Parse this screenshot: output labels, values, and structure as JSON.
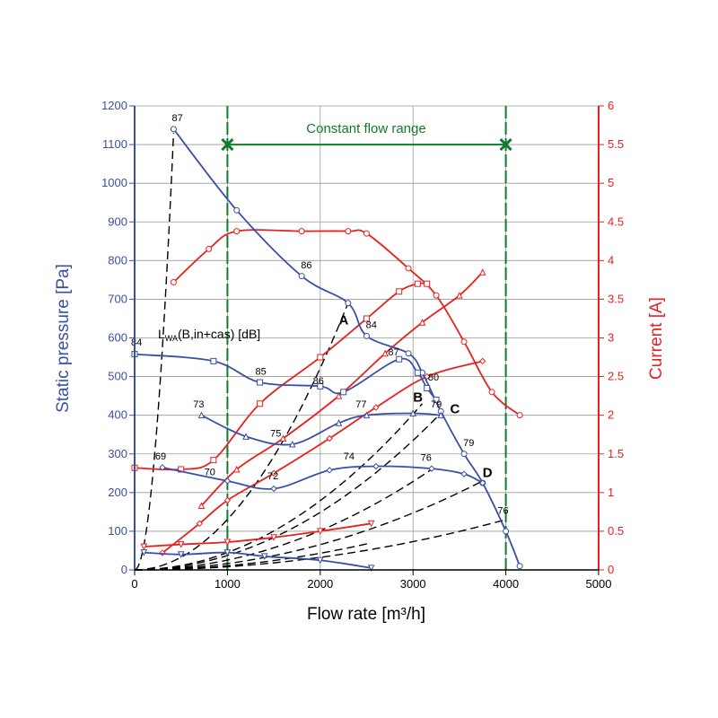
{
  "chart_data": {
    "type": "line",
    "title": "",
    "xlabel": "Flow rate [m³/h]",
    "ylabel": "Static pressure [Pa]",
    "y2label": "Current [A]",
    "xlim": [
      0,
      5000
    ],
    "ylim": [
      0,
      1200
    ],
    "y2lim": [
      0,
      6
    ],
    "x_ticks": [
      "0",
      "1000",
      "2000",
      "3000",
      "4000",
      "5000"
    ],
    "y_ticks": [
      "0",
      "100",
      "200",
      "300",
      "400",
      "500",
      "600",
      "700",
      "800",
      "900",
      "1000",
      "1100",
      "1200"
    ],
    "y2_ticks": [
      "0",
      "0.5",
      "1",
      "1.5",
      "2",
      "2.5",
      "3",
      "3.5",
      "4",
      "4.5",
      "5",
      "5.5",
      "6"
    ],
    "grid": true,
    "colors": {
      "pressure": "#3a4fa3",
      "current": "#e8201f",
      "range": "#127a2e",
      "system": "#000000"
    },
    "constant_flow_range": {
      "label": "Constant flow range",
      "x_start": 1000,
      "x_end": 4000,
      "y": 1100
    },
    "lwa_label": {
      "main": "L",
      "sub": "WA",
      "rest": "(B,in+cas) [dB]"
    },
    "pressure_series": [
      {
        "marker": "circle",
        "x": [
          420,
          1100,
          1800,
          2300,
          2500,
          2950,
          3100,
          3300,
          3550,
          3750,
          4000,
          4150
        ],
        "y": [
          1140,
          930,
          760,
          690,
          605,
          560,
          510,
          410,
          300,
          225,
          100,
          10
        ]
      },
      {
        "marker": "square",
        "x": [
          0,
          850,
          1350,
          2000,
          2250,
          2850,
          3050,
          3150,
          3250
        ],
        "y": [
          558,
          540,
          485,
          475,
          460,
          545,
          510,
          470,
          440
        ]
      },
      {
        "marker": "triangle",
        "x": [
          720,
          1200,
          1700,
          2200,
          2500,
          3000,
          3300
        ],
        "y": [
          400,
          345,
          325,
          380,
          400,
          405,
          400
        ]
      },
      {
        "marker": "diamond",
        "x": [
          300,
          1000,
          1500,
          2100,
          2600,
          3200,
          3550,
          3750
        ],
        "y": [
          265,
          230,
          210,
          258,
          268,
          262,
          248,
          225
        ]
      },
      {
        "marker": "triangle-down",
        "x": [
          100,
          500,
          1000,
          1400,
          2000,
          2550
        ],
        "y": [
          45,
          40,
          45,
          35,
          25,
          5
        ]
      }
    ],
    "current_series": [
      {
        "marker": "circle",
        "x": [
          420,
          800,
          1100,
          1800,
          2300,
          2500,
          2950,
          3250,
          3550,
          3850,
          4150
        ],
        "y": [
          3.72,
          4.15,
          4.38,
          4.38,
          4.38,
          4.35,
          3.9,
          3.55,
          2.95,
          2.3,
          2.0
        ]
      },
      {
        "marker": "square",
        "x": [
          0,
          500,
          850,
          1350,
          2000,
          2500,
          2850,
          3050,
          3150
        ],
        "y": [
          1.32,
          1.3,
          1.42,
          2.15,
          2.75,
          3.25,
          3.6,
          3.7,
          3.7
        ]
      },
      {
        "marker": "triangle",
        "x": [
          720,
          1100,
          1600,
          2200,
          2700,
          3100,
          3500,
          3750
        ],
        "y": [
          0.83,
          1.3,
          1.7,
          2.25,
          2.8,
          3.2,
          3.55,
          3.85
        ]
      },
      {
        "marker": "diamond",
        "x": [
          300,
          700,
          1000,
          1500,
          2100,
          2600,
          3150,
          3750
        ],
        "y": [
          0.22,
          0.6,
          0.9,
          1.25,
          1.7,
          2.1,
          2.5,
          2.7
        ]
      },
      {
        "marker": "triangle-down",
        "x": [
          100,
          500,
          1000,
          1500,
          2000,
          2550
        ],
        "y": [
          0.3,
          0.33,
          0.36,
          0.42,
          0.5,
          0.6
        ]
      }
    ],
    "system_curves": [
      {
        "x": [
          0,
          420
        ],
        "y": [
          0,
          1130
        ]
      },
      {
        "x": [
          0,
          2300
        ],
        "y": [
          0,
          690
        ]
      },
      {
        "x": [
          0,
          3100
        ],
        "y": [
          0,
          430
        ]
      },
      {
        "x": [
          0,
          3300
        ],
        "y": [
          0,
          405
        ]
      },
      {
        "x": [
          0,
          3750
        ],
        "y": [
          0,
          230
        ]
      },
      {
        "x": [
          0,
          4000
        ],
        "y": [
          0,
          130
        ]
      },
      {
        "x": [
          0,
          3200
        ],
        "y": [
          0,
          260
        ]
      },
      {
        "x": [
          0,
          2550
        ],
        "y": [
          0,
          70
        ]
      }
    ],
    "annotations": [
      {
        "text": "87",
        "x": 440,
        "y": 1160
      },
      {
        "text": "86",
        "x": 1830,
        "y": 780
      },
      {
        "text": "84",
        "x": 2530,
        "y": 625
      },
      {
        "text": "87",
        "x": 2770,
        "y": 555
      },
      {
        "text": "80",
        "x": 3200,
        "y": 490
      },
      {
        "text": "79",
        "x": 3580,
        "y": 320
      },
      {
        "text": "76",
        "x": 3950,
        "y": 145
      },
      {
        "text": "84",
        "x": 0,
        "y": 580
      },
      {
        "text": "85",
        "x": 1340,
        "y": 505
      },
      {
        "text": "86",
        "x": 1960,
        "y": 480
      },
      {
        "text": "73",
        "x": 670,
        "y": 420
      },
      {
        "text": "75",
        "x": 1500,
        "y": 345
      },
      {
        "text": "77",
        "x": 2420,
        "y": 420
      },
      {
        "text": "79",
        "x": 3230,
        "y": 420
      },
      {
        "text": "69",
        "x": 260,
        "y": 285
      },
      {
        "text": "70",
        "x": 790,
        "y": 245
      },
      {
        "text": "72",
        "x": 1470,
        "y": 235
      },
      {
        "text": "74",
        "x": 2290,
        "y": 285
      },
      {
        "text": "76",
        "x": 3120,
        "y": 282
      }
    ],
    "point_labels": [
      {
        "text": "A",
        "x": 2200,
        "y": 635
      },
      {
        "text": "B",
        "x": 3000,
        "y": 435
      },
      {
        "text": "C",
        "x": 3400,
        "y": 405
      },
      {
        "text": "D",
        "x": 3750,
        "y": 240
      }
    ]
  }
}
